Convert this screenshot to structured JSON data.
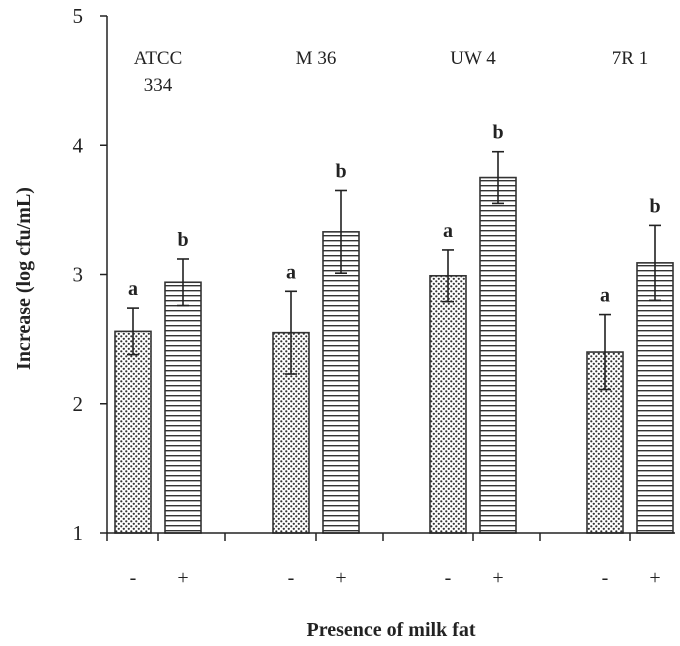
{
  "chart_data": {
    "type": "bar",
    "title": "",
    "xlabel": "Presence of milk fat",
    "ylabel": "Increase (log cfu/mL)",
    "ylim": [
      1,
      5
    ],
    "yticks": [
      "1",
      "2",
      "3",
      "4",
      "5"
    ],
    "grid": false,
    "legend": "none",
    "groups": [
      {
        "name_lines": [
          "ATCC",
          "334"
        ],
        "bars": [
          {
            "fat": "-",
            "value": 2.56,
            "error": 0.18,
            "sig": "a",
            "pattern": "dots"
          },
          {
            "fat": "+",
            "value": 2.94,
            "error": 0.18,
            "sig": "b",
            "pattern": "lines"
          }
        ]
      },
      {
        "name_lines": [
          "M 36"
        ],
        "bars": [
          {
            "fat": "-",
            "value": 2.55,
            "error": 0.32,
            "sig": "a",
            "pattern": "dots"
          },
          {
            "fat": "+",
            "value": 3.33,
            "error": 0.32,
            "sig": "b",
            "pattern": "lines"
          }
        ]
      },
      {
        "name_lines": [
          "UW 4"
        ],
        "bars": [
          {
            "fat": "-",
            "value": 2.99,
            "error": 0.2,
            "sig": "a",
            "pattern": "dots"
          },
          {
            "fat": "+",
            "value": 3.75,
            "error": 0.2,
            "sig": "b",
            "pattern": "lines"
          }
        ]
      },
      {
        "name_lines": [
          "7R 1"
        ],
        "bars": [
          {
            "fat": "-",
            "value": 2.4,
            "error": 0.29,
            "sig": "a",
            "pattern": "dots"
          },
          {
            "fat": "+",
            "value": 3.09,
            "error": 0.29,
            "sig": "b",
            "pattern": "lines"
          }
        ]
      }
    ],
    "colors": {
      "axis": "#222222",
      "bar_outline": "#333333",
      "background": "#ffffff"
    }
  }
}
